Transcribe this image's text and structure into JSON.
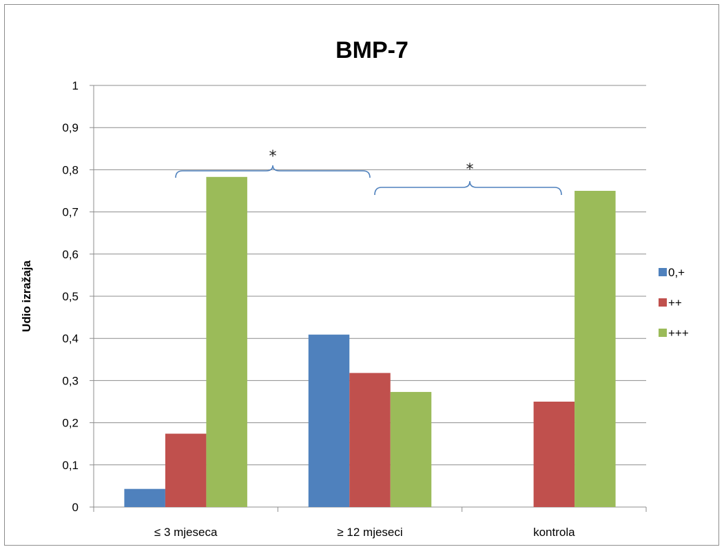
{
  "chart_data": {
    "type": "bar",
    "title": "BMP-7",
    "ylabel": "Udio izražaja",
    "xlabel": "",
    "ylim": [
      0,
      1
    ],
    "yticks": [
      0,
      0.1,
      0.2,
      0.3,
      0.4,
      0.5,
      0.6,
      0.7,
      0.8,
      0.9,
      1
    ],
    "yticklabels": [
      "0",
      "0,1",
      "0,2",
      "0,3",
      "0,4",
      "0,5",
      "0,6",
      "0,7",
      "0,8",
      "0,9",
      "1"
    ],
    "categories": [
      "≤ 3 mjeseca",
      "≥ 12 mjeseci",
      "kontrola"
    ],
    "series": [
      {
        "name": "0,+",
        "color": "#4f81bd",
        "values": [
          0.043,
          0.409,
          0
        ]
      },
      {
        "name": "++",
        "color": "#c0504d",
        "values": [
          0.174,
          0.318,
          0.25
        ]
      },
      {
        "name": "+++",
        "color": "#9bbb59",
        "values": [
          0.783,
          0.273,
          0.75
        ]
      }
    ],
    "grid": true,
    "legend_position": "right",
    "annotations": [
      {
        "text": "*",
        "from_category": 0,
        "to_category": 1
      },
      {
        "text": "*",
        "from_category": 1,
        "to_category": 2
      }
    ],
    "bracket_color": "#4f81bd"
  }
}
